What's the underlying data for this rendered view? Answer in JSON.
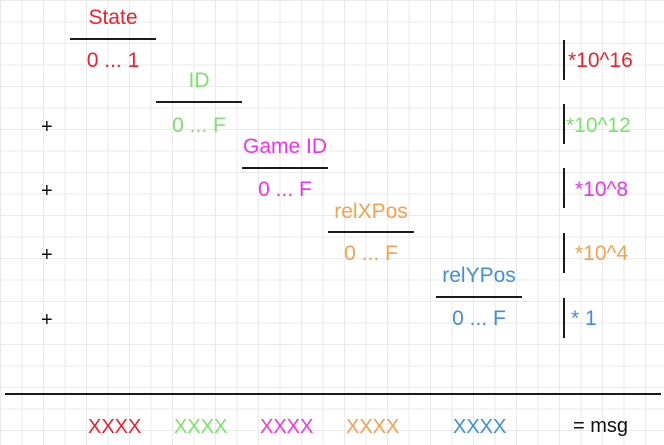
{
  "fields": [
    {
      "name": "State",
      "range": "0 ... 1",
      "multiplier": "*10^16",
      "prefix": "",
      "color": "#e8232d"
    },
    {
      "name": "ID",
      "range": "0 ... F",
      "multiplier": "*10^12",
      "prefix": "+",
      "color": "#7be36c"
    },
    {
      "name": "Game ID",
      "range": "0 ... F",
      "multiplier": "*10^8",
      "prefix": "+",
      "color": "#ee34e8"
    },
    {
      "name": "relXPos",
      "range": "0 ... F",
      "multiplier": "*10^4",
      "prefix": "+",
      "color": "#f5a04d"
    },
    {
      "name": "relYPos",
      "range": "0 ... F",
      "multiplier": "* 1",
      "prefix": "+",
      "color": "#3f8ee0"
    }
  ],
  "result": {
    "segments": [
      {
        "text": "XXXX",
        "color": "#e8232d"
      },
      {
        "text": "XXXX",
        "color": "#7be36c"
      },
      {
        "text": "XXXX",
        "color": "#ee34e8"
      },
      {
        "text": "XXXX",
        "color": "#f5a04d"
      },
      {
        "text": "XXXX",
        "color": "#3f8ee0"
      }
    ],
    "label": "= msg"
  }
}
